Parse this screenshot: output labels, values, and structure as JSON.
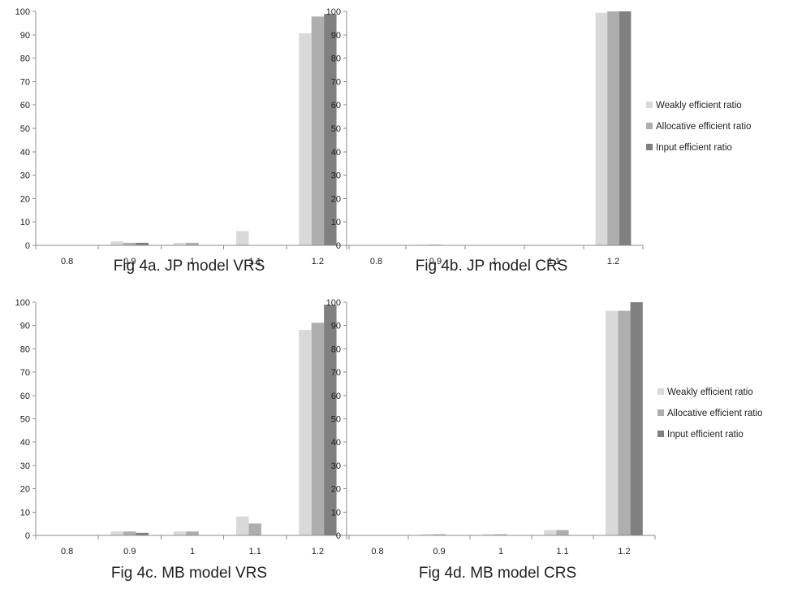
{
  "chart_data": [
    {
      "type": "bar",
      "title": "Fig 4a.  JP model VRS",
      "categories": [
        "0.8",
        "0.9",
        "1",
        "1.1",
        "1.2"
      ],
      "ylim": [
        0,
        100
      ],
      "yticks": [
        "0",
        "10",
        "20",
        "30",
        "40",
        "50",
        "60",
        "70",
        "80",
        "90",
        "100"
      ],
      "grid": false,
      "legend_position": "none",
      "series": [
        {
          "name": "Weakly efficient ratio",
          "color": "#d9d9d9",
          "values": [
            0,
            1.7,
            1.1,
            6.1,
            90.6
          ]
        },
        {
          "name": "Allocative efficient ratio",
          "color": "#aeaeae",
          "values": [
            0,
            1.1,
            1.1,
            0,
            97.8
          ]
        },
        {
          "name": "Input efficient ratio",
          "color": "#808080",
          "values": [
            0,
            1.1,
            0,
            0,
            98.9
          ]
        }
      ]
    },
    {
      "type": "bar",
      "title": "Fig 4b.  JP model CRS",
      "categories": [
        "0.8",
        "0.9",
        "1",
        "1.1",
        "1.2"
      ],
      "ylim": [
        0,
        100
      ],
      "yticks": [
        "0",
        "10",
        "20",
        "30",
        "40",
        "50",
        "60",
        "70",
        "80",
        "90",
        "100"
      ],
      "grid": false,
      "legend_position": "right",
      "series": [
        {
          "name": "Weakly efficient ratio",
          "color": "#d9d9d9",
          "values": [
            0,
            0.3,
            0,
            0,
            99.4
          ]
        },
        {
          "name": "Allocative efficient ratio",
          "color": "#aeaeae",
          "values": [
            0,
            0.3,
            0,
            0,
            100
          ]
        },
        {
          "name": "Input efficient ratio",
          "color": "#808080",
          "values": [
            0,
            0,
            0,
            0,
            100
          ]
        }
      ]
    },
    {
      "type": "bar",
      "title": "Fig 4c.  MB model VRS",
      "categories": [
        "0.8",
        "0.9",
        "1",
        "1.1",
        "1.2"
      ],
      "ylim": [
        0,
        100
      ],
      "yticks": [
        "0",
        "10",
        "20",
        "30",
        "40",
        "50",
        "60",
        "70",
        "80",
        "90",
        "100"
      ],
      "grid": false,
      "legend_position": "none",
      "series": [
        {
          "name": "Weakly efficient ratio",
          "color": "#d9d9d9",
          "values": [
            0,
            1.7,
            1.7,
            8.1,
            88.1
          ]
        },
        {
          "name": "Allocative efficient ratio",
          "color": "#aeaeae",
          "values": [
            0,
            1.7,
            1.7,
            5.1,
            91.2
          ]
        },
        {
          "name": "Input efficient ratio",
          "color": "#808080",
          "values": [
            0,
            1.1,
            0,
            0,
            98.9
          ]
        }
      ]
    },
    {
      "type": "bar",
      "title": "Fig 4d.  MB model CRS",
      "categories": [
        "0.8",
        "0.9",
        "1",
        "1.1",
        "1.2"
      ],
      "ylim": [
        0,
        100
      ],
      "yticks": [
        "0",
        "10",
        "20",
        "30",
        "40",
        "50",
        "60",
        "70",
        "80",
        "90",
        "100"
      ],
      "grid": false,
      "legend_position": "right",
      "series": [
        {
          "name": "Weakly efficient ratio",
          "color": "#d9d9d9",
          "values": [
            0,
            0.5,
            0.5,
            2.3,
            96.3
          ]
        },
        {
          "name": "Allocative efficient ratio",
          "color": "#aeaeae",
          "values": [
            0,
            0.5,
            0.5,
            2.3,
            96.3
          ]
        },
        {
          "name": "Input efficient ratio",
          "color": "#808080",
          "values": [
            0,
            0,
            0,
            0,
            100
          ]
        }
      ]
    }
  ]
}
